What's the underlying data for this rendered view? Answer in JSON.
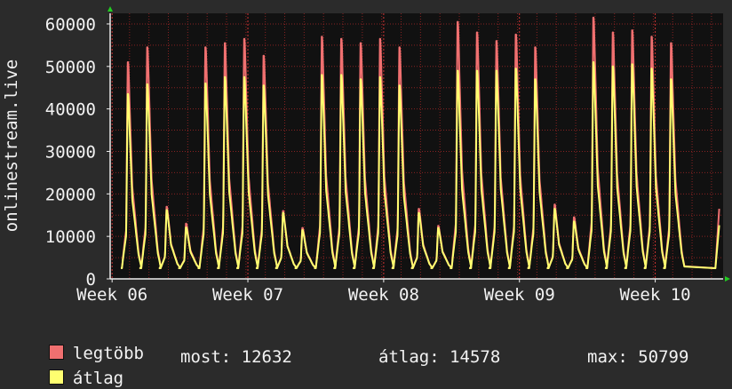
{
  "chart_data": {
    "type": "area",
    "ylabel": "onlinestream.live",
    "ylim": [
      0,
      62500
    ],
    "y_ticks": [
      0,
      10000,
      20000,
      30000,
      40000,
      50000,
      60000
    ],
    "x_tick_labels": [
      "Week 06",
      "Week 07",
      "Week 08",
      "Week 09",
      "Week 10"
    ],
    "x_unit": "days",
    "xlim": [
      0,
      31.6
    ],
    "x_tick_positions": [
      0.1,
      7.1,
      14.1,
      21.1,
      28.1
    ],
    "grid": true,
    "legend_placement": "bottom-left",
    "daily_peaks": [
      {
        "max": 51000,
        "avg": 43500
      },
      {
        "max": 54500,
        "avg": 45800
      },
      {
        "max": 17000,
        "avg": 16200
      },
      {
        "max": 13000,
        "avg": 12100
      },
      {
        "max": 54500,
        "avg": 46000
      },
      {
        "max": 55500,
        "avg": 47500
      },
      {
        "max": 56500,
        "avg": 47500
      },
      {
        "max": 52500,
        "avg": 45500
      },
      {
        "max": 16000,
        "avg": 15500
      },
      {
        "max": 12000,
        "avg": 11500
      },
      {
        "max": 57000,
        "avg": 48000
      },
      {
        "max": 56500,
        "avg": 48000
      },
      {
        "max": 55500,
        "avg": 47000
      },
      {
        "max": 56500,
        "avg": 47500
      },
      {
        "max": 54500,
        "avg": 45500
      },
      {
        "max": 16500,
        "avg": 15500
      },
      {
        "max": 12500,
        "avg": 12000
      },
      {
        "max": 60500,
        "avg": 49000
      },
      {
        "max": 58000,
        "avg": 49000
      },
      {
        "max": 56000,
        "avg": 49000
      },
      {
        "max": 57500,
        "avg": 49500
      },
      {
        "max": 54500,
        "avg": 47000
      },
      {
        "max": 17500,
        "avg": 16500
      },
      {
        "max": 14500,
        "avg": 13500
      },
      {
        "max": 61500,
        "avg": 51000
      },
      {
        "max": 58000,
        "avg": 50000
      },
      {
        "max": 58500,
        "avg": 50500
      },
      {
        "max": 57000,
        "avg": 49500
      },
      {
        "max": 55500,
        "avg": 47000
      }
    ],
    "last_value": {
      "max": 16500,
      "avg": 12632
    },
    "series": [
      {
        "name": "legtöbb",
        "color": "#f07070"
      },
      {
        "name": "átlag",
        "color": "#ffff70"
      }
    ],
    "colors": {
      "background": "#2b2b2b",
      "plot_background": "#111111",
      "grid": "#882222",
      "axis": "#eeeeee",
      "arrow": "#22cc22"
    }
  },
  "legend": {
    "max_label": "legtöbb",
    "avg_label": "átlag"
  },
  "stats": {
    "now": "most: 12632",
    "average": "átlag: 14578",
    "maximum": "max: 50799"
  }
}
